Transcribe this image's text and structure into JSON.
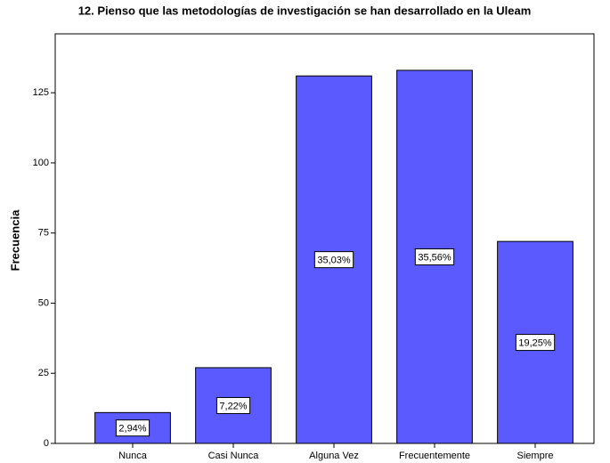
{
  "chart_data": {
    "type": "bar",
    "title": "12. Pienso que las metodologías de investigación se han desarrollado en la Uleam",
    "y_label": "Frecuencia",
    "categories": [
      "Nunca",
      "Casi Nunca",
      "Alguna Vez",
      "Frecuentemente",
      "Siempre"
    ],
    "values": [
      11,
      27,
      131,
      133,
      72
    ],
    "bar_labels": [
      "2,94%",
      "7,22%",
      "35,03%",
      "35,56%",
      "19,25%"
    ],
    "color": "#5a5aff",
    "ylim": [
      0,
      146
    ],
    "yticks": [
      0,
      25,
      50,
      75,
      100,
      125
    ],
    "grid": false
  }
}
